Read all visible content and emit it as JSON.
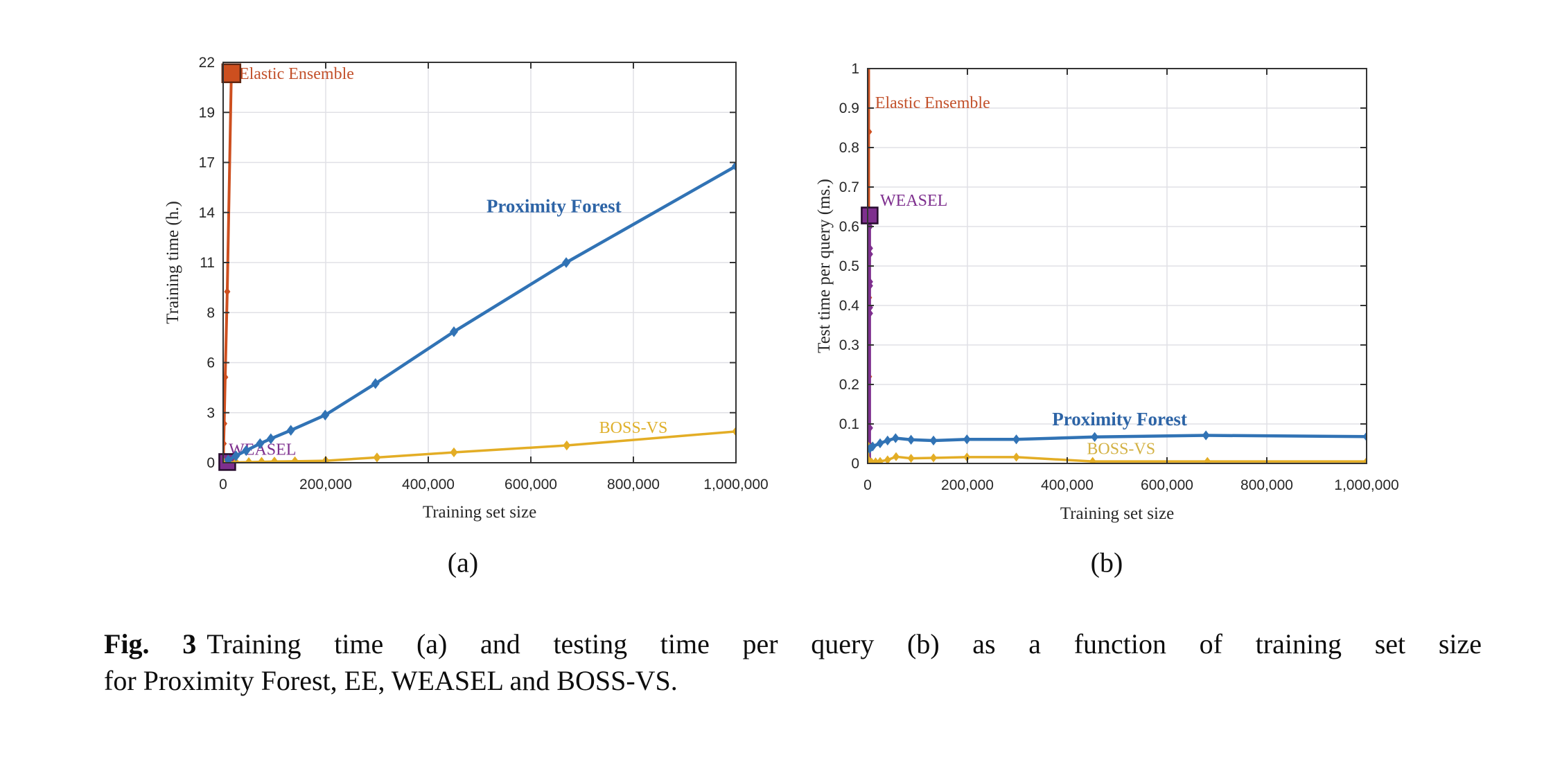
{
  "caption": {
    "fig_label": "Fig. 3",
    "line1": "Training time (a) and testing time per query (b) as a function of training set size",
    "line2": "for Proximity Forest, EE, WEASEL and BOSS-VS."
  },
  "colors": {
    "elastic_ensemble": "#cd4f1f",
    "weasel": "#7e2f8e",
    "boss_vs": "#e3ad25",
    "proximity_forest": "#3173b5",
    "grid": "#e0e0e6",
    "axis": "#333333",
    "tick_text": "#262626"
  },
  "chart_data": [
    {
      "id": "a",
      "type": "line",
      "sublabel": "(a)",
      "xlabel": "Training set size",
      "ylabel": "Training time (h.)",
      "xlim": [
        0,
        1000000
      ],
      "ylim": [
        0,
        22
      ],
      "grid": true,
      "xticks": {
        "values": [
          0,
          200000,
          400000,
          600000,
          800000,
          1000000
        ],
        "labels": [
          "0",
          "200,000",
          "400,000",
          "600,000",
          "800,000",
          "1,000,000"
        ]
      },
      "yticks": {
        "values": [
          0,
          2.75,
          5.5,
          8.25,
          11,
          13.75,
          16.5,
          19.25,
          22
        ],
        "labels": [
          "0",
          "3",
          "6",
          "8",
          "11",
          "14",
          "17",
          "19",
          "22"
        ]
      },
      "series": [
        {
          "name": "Elastic Ensemble",
          "color": "#cd4f1f",
          "line_width": 4,
          "marker": "diamond",
          "marker_size": 4.5,
          "x": [
            500,
            1000,
            2000,
            4000,
            8000,
            16000
          ],
          "y": [
            0.3,
            1.05,
            2.15,
            4.7,
            9.4,
            21.4
          ],
          "end_marker": {
            "shape": "square",
            "size": 26,
            "stroke": "#5f2713"
          }
        },
        {
          "name": "WEASEL",
          "color": "#7e2f8e",
          "line_width": 3.5,
          "marker": "diamond",
          "marker_size": 4,
          "x": [
            1000,
            2000,
            3000,
            4000,
            6000,
            8000
          ],
          "y": [
            0.004,
            0.01,
            0.018,
            0.025,
            0.033,
            0.04
          ],
          "end_marker": {
            "shape": "square",
            "size": 23,
            "stroke": "#260b2d"
          }
        },
        {
          "name": "BOSS-VS",
          "color": "#e3ad25",
          "line_width": 3.5,
          "marker": "diamond",
          "marker_size": 5.5,
          "x": [
            1000,
            25000,
            50000,
            75000,
            100000,
            140000,
            200000,
            300000,
            450000,
            670000,
            1000000
          ],
          "y": [
            0.005,
            0.02,
            0.035,
            0.05,
            0.065,
            0.08,
            0.11,
            0.29,
            0.57,
            0.95,
            1.72
          ]
        },
        {
          "name": "Proximity Forest",
          "color": "#3173b5",
          "line_width": 4.5,
          "marker": "diamond",
          "marker_size": 6,
          "x": [
            10000,
            25000,
            45000,
            72000,
            93000,
            132000,
            199000,
            297000,
            450000,
            669000,
            1000000
          ],
          "y": [
            0.15,
            0.38,
            0.67,
            1.05,
            1.32,
            1.78,
            2.62,
            4.35,
            7.2,
            11.0,
            16.3
          ]
        }
      ],
      "annotations": [
        {
          "text": "Elastic Ensemble",
          "x": 31000,
          "y": 21.3,
          "anchor": "start",
          "color": "#c2502a",
          "size": 24,
          "bold": false
        },
        {
          "text": "Proximity Forest",
          "x": 645000,
          "y": 14.0,
          "anchor": "middle",
          "color": "#2d64a6",
          "size": 27,
          "bold": true
        },
        {
          "text": "WEASEL",
          "x": 11000,
          "y": 0.65,
          "anchor": "start",
          "color": "#7e2f8e",
          "size": 24,
          "bold": false
        },
        {
          "text": "BOSS-VS",
          "x": 800000,
          "y": 1.85,
          "anchor": "middle",
          "color": "#dfb02c",
          "size": 24,
          "bold": false
        }
      ]
    },
    {
      "id": "b",
      "type": "line",
      "sublabel": "(b)",
      "xlabel": "Training set size",
      "ylabel": "Test time per query (ms.)",
      "xlim": [
        0,
        1000000
      ],
      "ylim": [
        0,
        1
      ],
      "grid": true,
      "xticks": {
        "values": [
          0,
          200000,
          400000,
          600000,
          800000,
          1000000
        ],
        "labels": [
          "0",
          "200,000",
          "400,000",
          "600,000",
          "800,000",
          "1,000,000"
        ]
      },
      "yticks": {
        "values": [
          0,
          0.1,
          0.2,
          0.3,
          0.4,
          0.5,
          0.6,
          0.7,
          0.8,
          0.9,
          1
        ],
        "labels": [
          "0",
          "0.1",
          "0.2",
          "0.3",
          "0.4",
          "0.5",
          "0.6",
          "0.7",
          "0.8",
          "0.9",
          "1"
        ]
      },
      "series": [
        {
          "name": "Elastic Ensemble",
          "color": "#cd4f1f",
          "line_width": 4,
          "marker": "diamond",
          "marker_size": 5,
          "x": [
            2000,
            2000,
            2000,
            2000,
            2000
          ],
          "y": [
            0.05,
            0.22,
            0.42,
            0.84,
            1.08
          ]
        },
        {
          "name": "WEASEL",
          "color": "#7e2f8e",
          "line_width": 4,
          "marker": "diamond",
          "marker_size": 5,
          "x": [
            4000,
            4000,
            4000,
            4000,
            4000,
            4000,
            4000,
            4000,
            4000,
            4000,
            4000,
            4000
          ],
          "y": [
            0.005,
            0.04,
            0.09,
            0.38,
            0.395,
            0.45,
            0.46,
            0.53,
            0.545,
            0.6,
            0.615,
            0.628
          ],
          "end_marker": {
            "shape": "square",
            "size": 23,
            "stroke": "#260b2d"
          }
        },
        {
          "name": "BOSS-VS",
          "color": "#e3ad25",
          "line_width": 3.5,
          "marker": "diamond",
          "marker_size": 5,
          "x": [
            500,
            1000,
            2000,
            8000,
            16000,
            25000,
            40000,
            57000,
            87000,
            132000,
            199000,
            298000,
            451000,
            681000,
            1000000
          ],
          "y": [
            0.045,
            0.01,
            0.003,
            0.003,
            0.004,
            0.005,
            0.009,
            0.017,
            0.013,
            0.014,
            0.016,
            0.016,
            0.005,
            0.005,
            0.005
          ]
        },
        {
          "name": "Proximity Forest",
          "color": "#3173b5",
          "line_width": 4.5,
          "marker": "diamond",
          "marker_size": 5.5,
          "x": [
            4000,
            10000,
            25000,
            40000,
            56000,
            87000,
            132000,
            199000,
            298000,
            455000,
            678000,
            1000000
          ],
          "y": [
            0.037,
            0.043,
            0.051,
            0.058,
            0.064,
            0.06,
            0.058,
            0.061,
            0.061,
            0.067,
            0.071,
            0.068
          ]
        }
      ],
      "annotations": [
        {
          "text": "Elastic Ensemble",
          "x": 15000,
          "y": 0.91,
          "anchor": "start",
          "color": "#c2502a",
          "size": 24,
          "bold": false
        },
        {
          "text": "WEASEL",
          "x": 25000,
          "y": 0.662,
          "anchor": "start",
          "color": "#7e2f8e",
          "size": 24,
          "bold": false
        },
        {
          "text": "Proximity Forest",
          "x": 505000,
          "y": 0.107,
          "anchor": "middle",
          "color": "#2d64a6",
          "size": 27,
          "bold": true
        },
        {
          "text": "BOSS-VS",
          "x": 508000,
          "y": 0.033,
          "anchor": "middle",
          "color": "#d3b143",
          "size": 24,
          "bold": false
        }
      ]
    }
  ]
}
